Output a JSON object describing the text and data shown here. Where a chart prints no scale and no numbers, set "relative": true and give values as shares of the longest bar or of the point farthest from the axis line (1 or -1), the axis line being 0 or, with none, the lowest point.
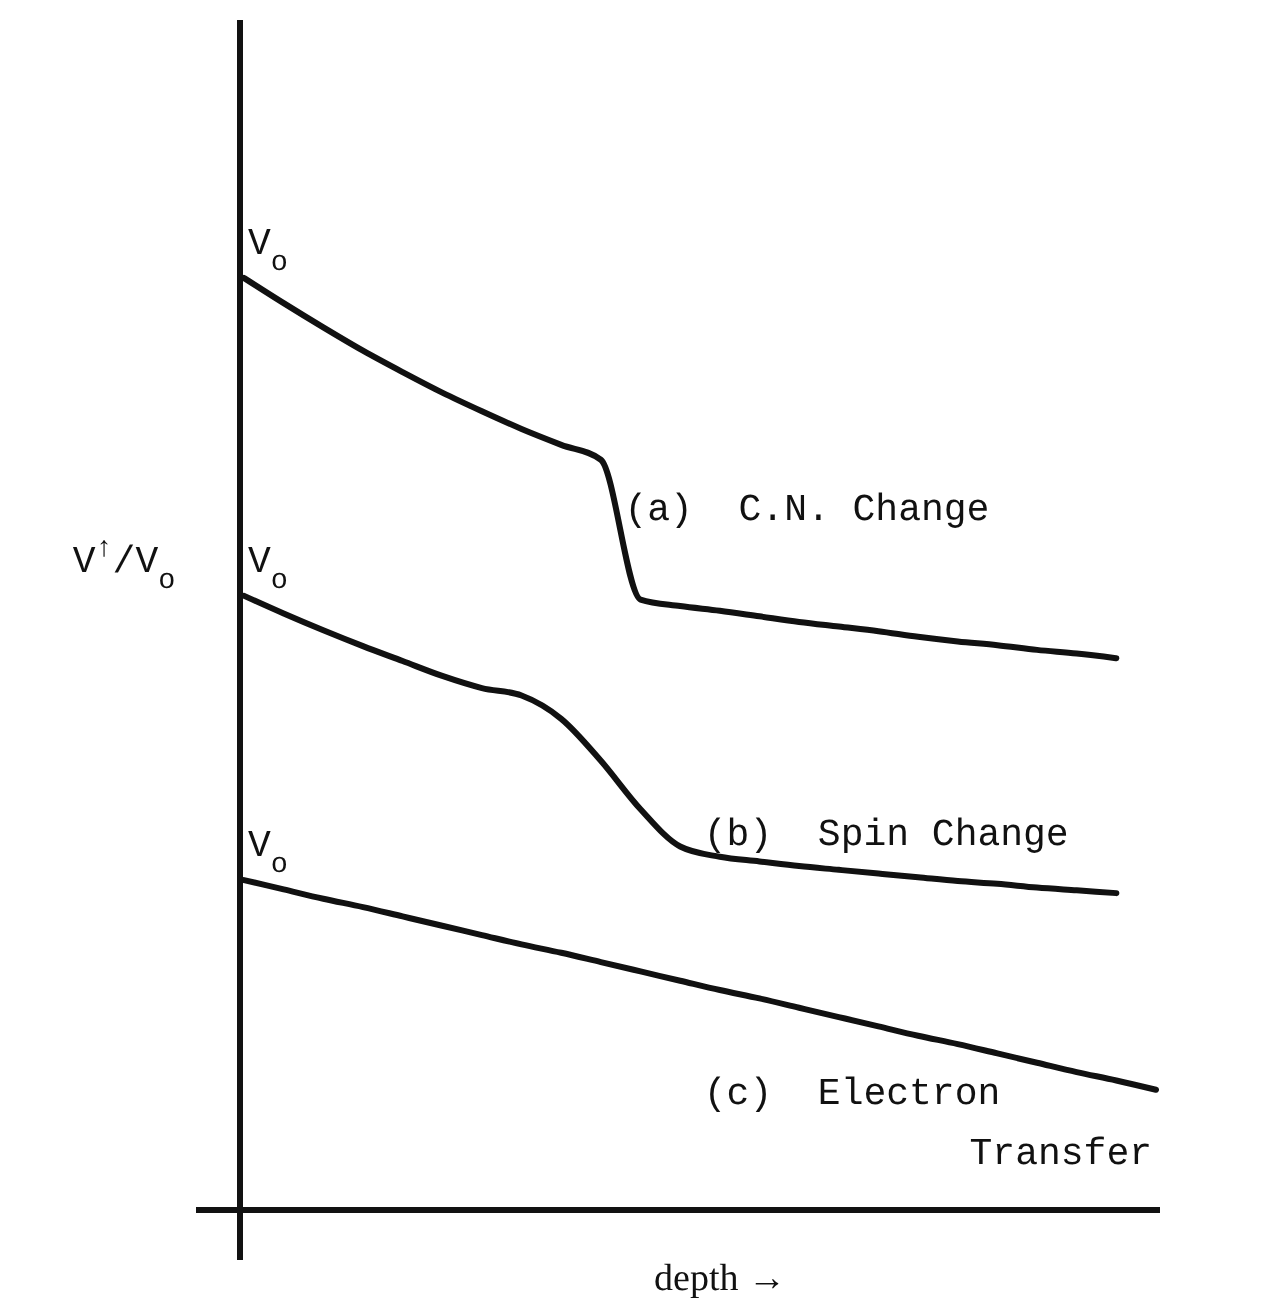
{
  "chart_data": {
    "type": "line",
    "relative": true,
    "xlabel": "depth →",
    "ylabel": "V$^{↑}$/V$_{o}$",
    "categories": [
      null,
      null,
      null,
      null,
      null,
      null,
      null,
      null,
      null,
      null,
      null,
      null,
      null,
      null,
      null,
      null,
      null,
      null,
      null,
      null,
      null,
      null,
      null,
      null
    ],
    "series": [
      {
        "name": "(a)  C.N. Change",
        "color": "#111111",
        "values": [
          1.0,
          0.973,
          0.947,
          0.922,
          0.899,
          0.877,
          0.857,
          0.838,
          0.821,
          0.805,
          0.655,
          0.648,
          0.643,
          0.637,
          0.631,
          0.626,
          0.621,
          0.615,
          0.61,
          0.606,
          0.601,
          0.597,
          0.592,
          null
        ]
      },
      {
        "name": "(b)  Spin Change",
        "color": "#111111",
        "values": [
          0.659,
          0.64,
          0.622,
          0.605,
          0.589,
          0.573,
          0.56,
          0.552,
          0.527,
          0.482,
          0.43,
          0.39,
          0.379,
          0.374,
          0.369,
          0.365,
          0.361,
          0.357,
          0.353,
          0.35,
          0.346,
          0.343,
          0.34,
          null
        ]
      },
      {
        "name": "(c)  Electron Transfer",
        "color": "#111111",
        "values": [
          0.354,
          0.344,
          0.334,
          0.325,
          0.315,
          0.305,
          0.295,
          0.285,
          0.276,
          0.266,
          0.256,
          0.246,
          0.236,
          0.227,
          0.217,
          0.207,
          0.197,
          0.187,
          0.178,
          0.168,
          0.158,
          0.148,
          0.139,
          0.129
        ]
      }
    ],
    "annotations": [
      {
        "text": "V$_{o}$",
        "y": 1.0
      },
      {
        "text": "V$_{o}$",
        "y": 0.659
      },
      {
        "text": "V$_{o}$",
        "y": 0.354
      }
    ]
  }
}
